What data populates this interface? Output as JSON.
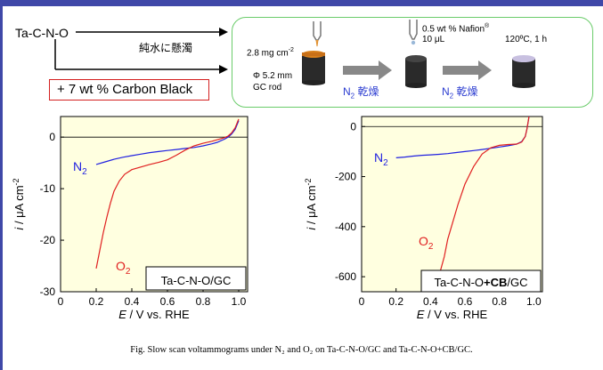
{
  "scheme": {
    "material": "Ta-C-N-O",
    "suspension": "純水に懸濁",
    "carbon_black": "+ 7 wt % Carbon Black",
    "loading": "2.8 mg cm",
    "loading_sup": "-2",
    "rod_diameter": "Φ 5.2 mm",
    "rod_name": "GC rod",
    "nafion_line1": "0.5 wt % Nafion",
    "nafion_mark": "®",
    "nafion_line2": "10 μL",
    "anneal": "120ºC, 1 h",
    "dry_step1": "乾燥",
    "dry_step2": "乾燥",
    "gas": "N",
    "gas_sub": "2"
  },
  "caption": "Fig. Slow scan voltammograms under N₂ and O₂ on Ta-C-N-O/GC and Ta-C-N-O+CB/GC.",
  "colors": {
    "n2": "#2020e0",
    "o2": "#e02020",
    "plot_bg": "#ffffe0",
    "accent": "#3f48a8",
    "box_red": "#d42020",
    "box_green": "#6acc6a",
    "arrow_gray": "#888888"
  },
  "chart_data": [
    {
      "type": "line",
      "title": "",
      "label": "Ta-C-N-O/GC",
      "xlabel": "E / V vs. RHE",
      "ylabel": "i / μA cm-2",
      "xlim": [
        0.0,
        1.05
      ],
      "ylim": [
        -30,
        4
      ],
      "xticks": [
        0,
        0.2,
        0.4,
        0.6,
        0.8,
        1.0
      ],
      "xtick_labels": [
        "0",
        "0.2",
        "0.4",
        "0.6",
        "0.8",
        "1.0"
      ],
      "yticks": [
        0,
        -10,
        -20,
        -30
      ],
      "ytick_labels": [
        "0",
        "-10",
        "-20",
        "-30"
      ],
      "zero_line": true,
      "series": [
        {
          "name": "N2",
          "color": "#2020e0",
          "x": [
            0.2,
            0.25,
            0.3,
            0.35,
            0.4,
            0.45,
            0.5,
            0.55,
            0.6,
            0.65,
            0.7,
            0.75,
            0.8,
            0.85,
            0.88,
            0.9,
            0.92,
            0.94,
            0.96,
            0.98,
            1.0
          ],
          "y": [
            -5.3,
            -4.8,
            -4.3,
            -3.9,
            -3.6,
            -3.3,
            -3.0,
            -2.8,
            -2.6,
            -2.4,
            -2.2,
            -2.0,
            -1.7,
            -1.3,
            -1.0,
            -0.7,
            -0.4,
            0.0,
            0.6,
            1.5,
            3.2
          ]
        },
        {
          "name": "O2",
          "color": "#e02020",
          "x": [
            0.2,
            0.22,
            0.24,
            0.26,
            0.28,
            0.3,
            0.33,
            0.36,
            0.4,
            0.45,
            0.5,
            0.55,
            0.6,
            0.65,
            0.7,
            0.75,
            0.8,
            0.85,
            0.88,
            0.9,
            0.92,
            0.94,
            0.96,
            0.98,
            1.0
          ],
          "y": [
            -25.5,
            -22.0,
            -18.5,
            -15.5,
            -12.8,
            -10.5,
            -8.5,
            -7.2,
            -6.3,
            -5.8,
            -5.3,
            -4.9,
            -4.4,
            -3.5,
            -2.5,
            -1.7,
            -1.2,
            -0.8,
            -0.5,
            -0.3,
            -0.1,
            0.2,
            0.8,
            1.8,
            3.5
          ]
        }
      ],
      "series_labels": [
        {
          "text": "N",
          "sub": "2"
        },
        {
          "text": "O",
          "sub": "2"
        }
      ]
    },
    {
      "type": "line",
      "title": "",
      "label_pre": "Ta-C-N-O",
      "label_bold": "+CB",
      "label_post": "/GC",
      "xlabel": "E / V vs. RHE",
      "ylabel": "i / μA cm-2",
      "xlim": [
        0.0,
        1.05
      ],
      "ylim": [
        -660,
        40
      ],
      "xticks": [
        0,
        0.2,
        0.4,
        0.6,
        0.8,
        1.0
      ],
      "xtick_labels": [
        "0",
        "0.2",
        "0.4",
        "0.6",
        "0.8",
        "1.0"
      ],
      "yticks": [
        0,
        -200,
        -400,
        -600
      ],
      "ytick_labels": [
        "0",
        "-200",
        "-400",
        "-600"
      ],
      "zero_line": true,
      "series": [
        {
          "name": "N2",
          "color": "#2020e0",
          "x": [
            0.2,
            0.25,
            0.3,
            0.35,
            0.4,
            0.45,
            0.5,
            0.55,
            0.6,
            0.65,
            0.7,
            0.75,
            0.8,
            0.85,
            0.9,
            0.93,
            0.95,
            0.96,
            0.97,
            0.975
          ],
          "y": [
            -125,
            -122,
            -118,
            -115,
            -113,
            -111,
            -108,
            -104,
            -100,
            -96,
            -92,
            -87,
            -82,
            -77,
            -70,
            -60,
            -40,
            -10,
            30,
            60
          ]
        },
        {
          "name": "O2",
          "color": "#e02020",
          "x": [
            0.45,
            0.48,
            0.5,
            0.53,
            0.56,
            0.6,
            0.65,
            0.7,
            0.75,
            0.8,
            0.85,
            0.9,
            0.93,
            0.95,
            0.96,
            0.97,
            0.975
          ],
          "y": [
            -595,
            -520,
            -450,
            -380,
            -310,
            -230,
            -160,
            -110,
            -85,
            -75,
            -72,
            -70,
            -62,
            -40,
            -10,
            30,
            60
          ]
        }
      ],
      "series_labels": [
        {
          "text": "N",
          "sub": "2"
        },
        {
          "text": "O",
          "sub": "2"
        }
      ]
    }
  ]
}
